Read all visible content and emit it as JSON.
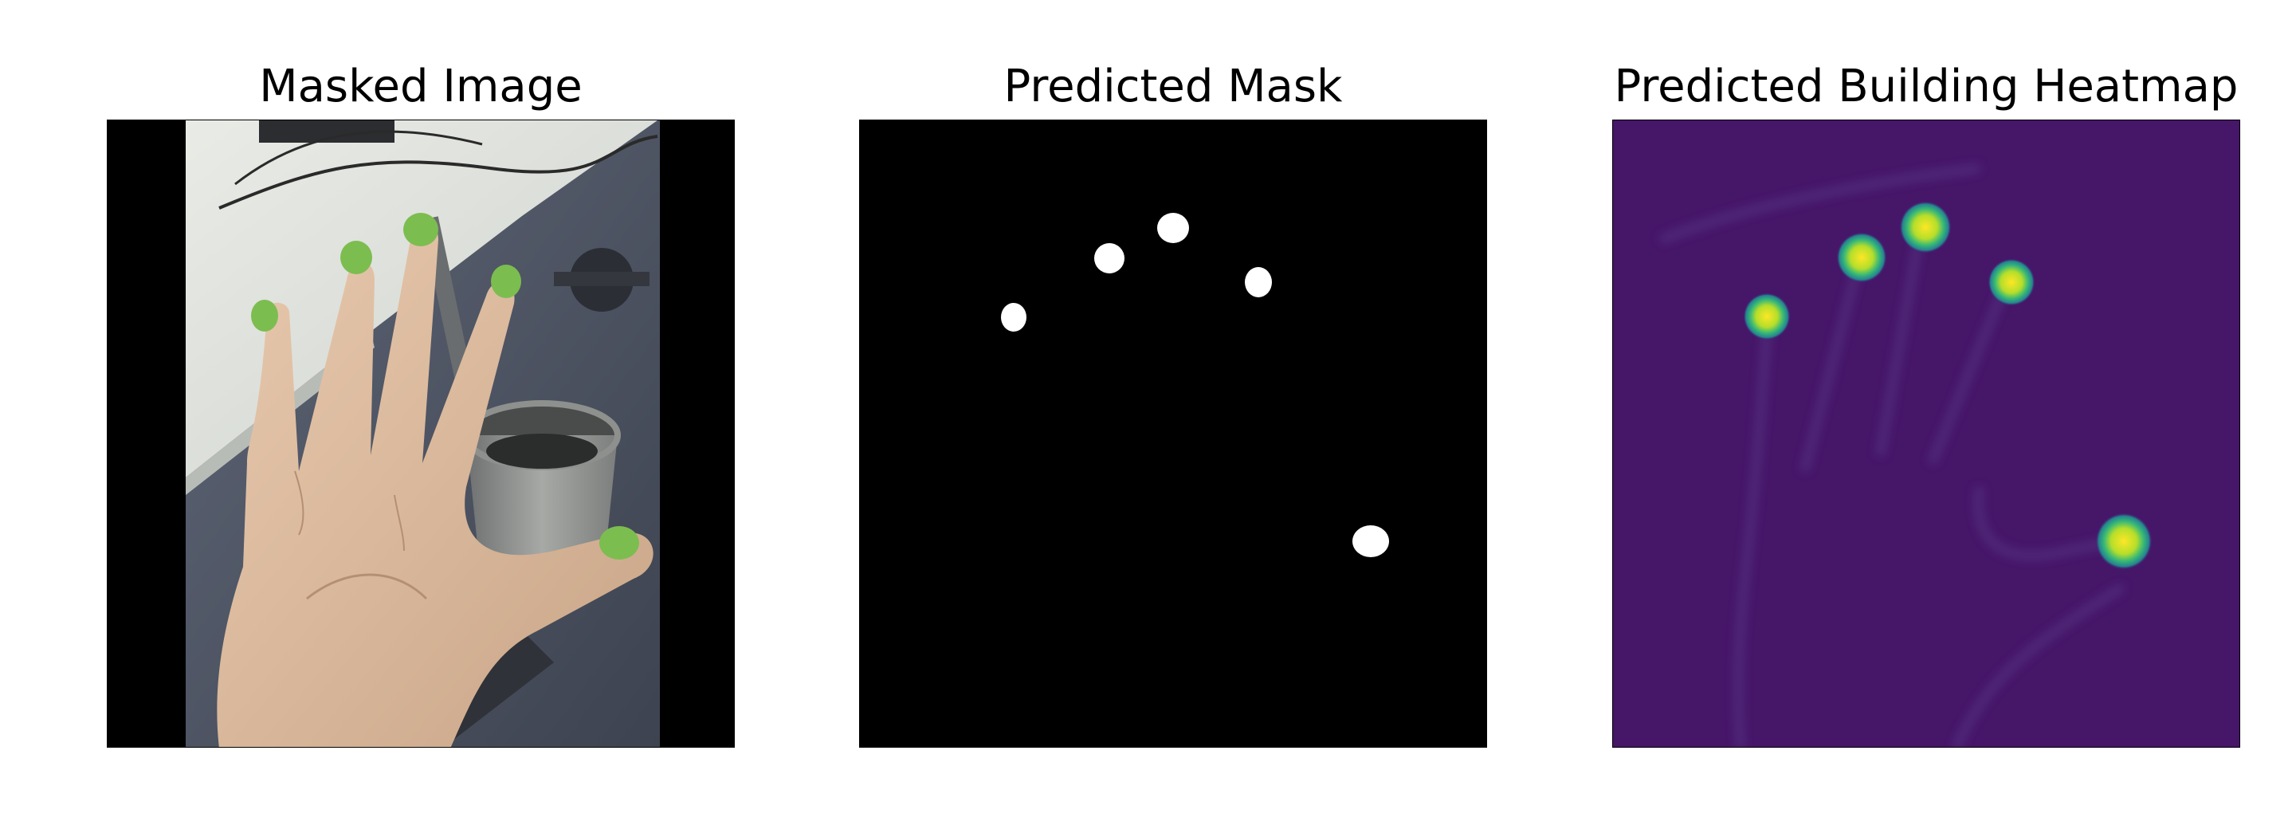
{
  "figure": {
    "panels": [
      {
        "title": "Masked Image",
        "content": "photo-hand-with-masked-nails",
        "mask_color": "#7cbd4f"
      },
      {
        "title": "Predicted Mask",
        "content": "binary-mask",
        "background_color": "#000000",
        "foreground_color": "#ffffff"
      },
      {
        "title": "Predicted Building Heatmap",
        "content": "heatmap",
        "colormap": "viridis",
        "low_color": "#440f6f",
        "high_color": "#fde725"
      }
    ]
  }
}
